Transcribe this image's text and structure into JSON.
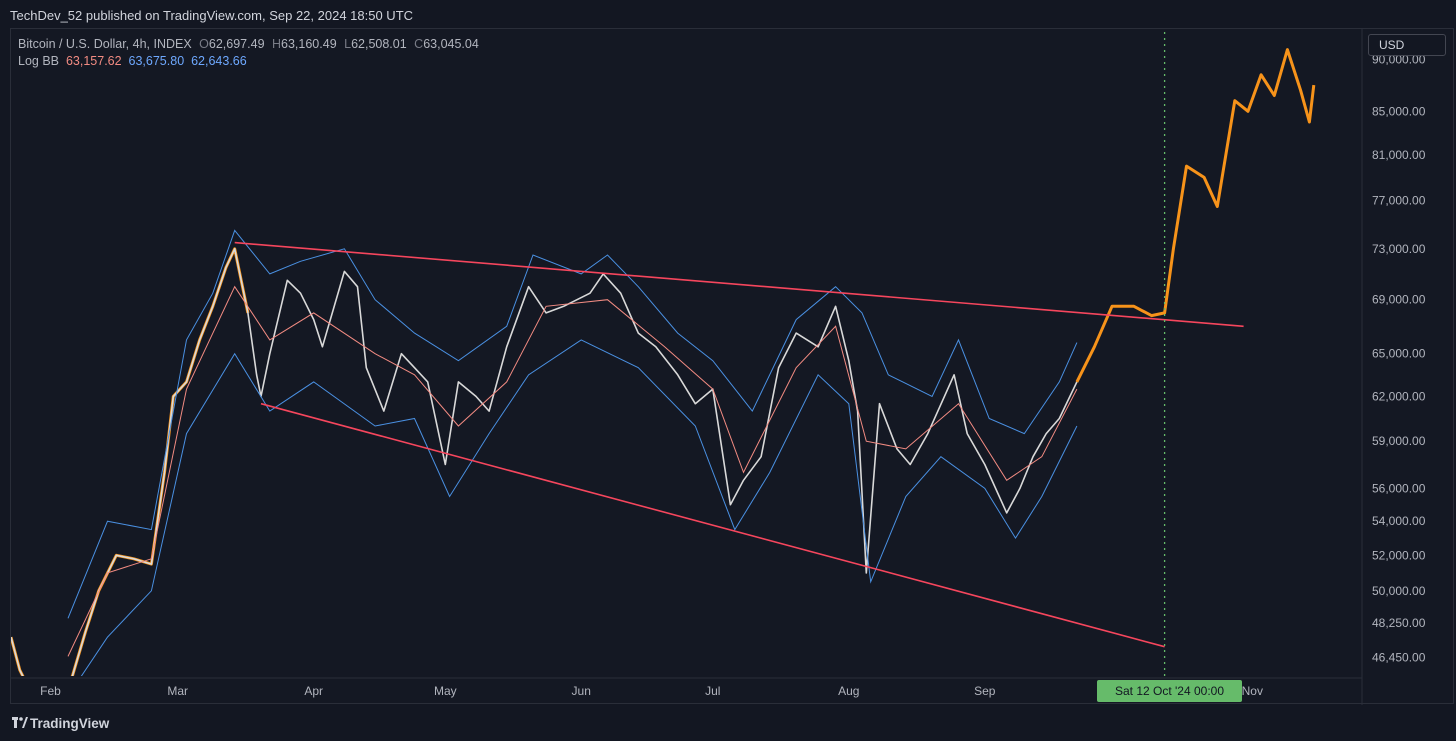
{
  "header": {
    "publish_line": "TechDev_52 published on TradingView.com, Sep 22, 2024 18:50 UTC"
  },
  "legend": {
    "symbol": "Bitcoin / U.S. Dollar, 4h, INDEX",
    "open_label": "O",
    "open": "62,697.49",
    "high_label": "H",
    "high": "63,160.49",
    "low_label": "L",
    "low": "62,508.01",
    "close_label": "C",
    "close": "63,045.04",
    "indicator": "Log BB",
    "bb_basis": "63,157.62",
    "bb_upper": "63,675.80",
    "bb_lower": "62,643.66"
  },
  "currency": "USD",
  "crosshair_time": "Sat 12 Oct '24   00:00",
  "footer": {
    "brand": "TradingView"
  },
  "colors": {
    "background": "#131722",
    "candles_history": "#d9d9d9",
    "candles_projection": "#f7931a",
    "bollinger_band": "#4a90e2",
    "bollinger_basis": "#f28b82",
    "trendline": "#f6465d",
    "vertical_marker": "#66bb6a"
  },
  "chart_data": {
    "type": "line",
    "title": "Bitcoin / U.S. Dollar, 4h, INDEX",
    "y_scale": "log",
    "ylim": [
      45500,
      93000
    ],
    "y_ticks": [
      46450,
      48250,
      50000,
      52000,
      54000,
      56000,
      59000,
      62000,
      65000,
      69000,
      73000,
      77000,
      81000,
      85000,
      90000
    ],
    "y_tick_labels": [
      "46,450.00",
      "48,250.00",
      "50,000.00",
      "52,000.00",
      "54,000.00",
      "56,000.00",
      "59,000.00",
      "62,000.00",
      "65,000.00",
      "69,000.00",
      "73,000.00",
      "77,000.00",
      "81,000.00",
      "85,000.00",
      "90,000.00"
    ],
    "x_tick_labels": [
      "Feb",
      "Mar",
      "Apr",
      "May",
      "Jun",
      "Jul",
      "Aug",
      "Sep",
      "Nov"
    ],
    "x_tick_dates": [
      "2024-02-01",
      "2024-03-01",
      "2024-04-01",
      "2024-05-01",
      "2024-06-01",
      "2024-07-01",
      "2024-08-01",
      "2024-09-01",
      "2024-11-01"
    ],
    "xlim": [
      "2024-01-23",
      "2024-11-26"
    ],
    "series": [
      {
        "style": "price",
        "points": [
          [
            "2024-01-23",
            47500
          ],
          [
            "2024-01-25",
            45800
          ],
          [
            "2024-01-28",
            44500
          ],
          [
            "2024-02-01",
            43800
          ],
          [
            "2024-02-06",
            45500
          ],
          [
            "2024-02-09",
            47800
          ],
          [
            "2024-02-12",
            50000
          ],
          [
            "2024-02-16",
            52000
          ],
          [
            "2024-02-20",
            51800
          ],
          [
            "2024-02-24",
            51500
          ],
          [
            "2024-02-27",
            57000
          ],
          [
            "2024-02-29",
            62000
          ],
          [
            "2024-03-03",
            63000
          ],
          [
            "2024-03-06",
            66000
          ],
          [
            "2024-03-09",
            68500
          ],
          [
            "2024-03-12",
            71500
          ],
          [
            "2024-03-14",
            73000
          ],
          [
            "2024-03-17",
            68000
          ],
          [
            "2024-03-19",
            63500
          ],
          [
            "2024-03-20",
            62000
          ],
          [
            "2024-03-22",
            65000
          ],
          [
            "2024-03-26",
            70500
          ],
          [
            "2024-03-29",
            69500
          ],
          [
            "2024-04-01",
            67500
          ],
          [
            "2024-04-03",
            65500
          ],
          [
            "2024-04-08",
            71200
          ],
          [
            "2024-04-11",
            70000
          ],
          [
            "2024-04-13",
            64000
          ],
          [
            "2024-04-17",
            61000
          ],
          [
            "2024-04-21",
            65000
          ],
          [
            "2024-04-24",
            64000
          ],
          [
            "2024-04-27",
            63000
          ],
          [
            "2024-05-01",
            57500
          ],
          [
            "2024-05-04",
            63000
          ],
          [
            "2024-05-08",
            62000
          ],
          [
            "2024-05-11",
            61000
          ],
          [
            "2024-05-15",
            65500
          ],
          [
            "2024-05-20",
            70000
          ],
          [
            "2024-05-24",
            68000
          ],
          [
            "2024-05-28",
            68500
          ],
          [
            "2024-06-03",
            69500
          ],
          [
            "2024-06-06",
            71000
          ],
          [
            "2024-06-10",
            69500
          ],
          [
            "2024-06-14",
            66500
          ],
          [
            "2024-06-18",
            65500
          ],
          [
            "2024-06-23",
            63500
          ],
          [
            "2024-06-27",
            61500
          ],
          [
            "2024-07-01",
            62500
          ],
          [
            "2024-07-05",
            55000
          ],
          [
            "2024-07-08",
            56500
          ],
          [
            "2024-07-12",
            58000
          ],
          [
            "2024-07-16",
            64000
          ],
          [
            "2024-07-20",
            66500
          ],
          [
            "2024-07-25",
            65500
          ],
          [
            "2024-07-29",
            68500
          ],
          [
            "2024-08-01",
            64500
          ],
          [
            "2024-08-03",
            61000
          ],
          [
            "2024-08-05",
            51000
          ],
          [
            "2024-08-08",
            61500
          ],
          [
            "2024-08-12",
            58500
          ],
          [
            "2024-08-15",
            57500
          ],
          [
            "2024-08-19",
            59500
          ],
          [
            "2024-08-25",
            63500
          ],
          [
            "2024-08-28",
            59500
          ],
          [
            "2024-09-01",
            57500
          ],
          [
            "2024-09-06",
            54500
          ],
          [
            "2024-09-09",
            56000
          ],
          [
            "2024-09-12",
            58000
          ],
          [
            "2024-09-15",
            59500
          ],
          [
            "2024-09-18",
            60500
          ],
          [
            "2024-09-22",
            63000
          ],
          [
            "2024-09-26",
            65500
          ],
          [
            "2024-09-30",
            68500
          ],
          [
            "2024-10-05",
            68500
          ],
          [
            "2024-10-09",
            67800
          ],
          [
            "2024-10-12",
            68000
          ],
          [
            "2024-10-14",
            73000
          ],
          [
            "2024-10-17",
            80000
          ],
          [
            "2024-10-21",
            79000
          ],
          [
            "2024-10-24",
            76500
          ],
          [
            "2024-10-28",
            86000
          ],
          [
            "2024-10-31",
            85000
          ],
          [
            "2024-11-03",
            88500
          ],
          [
            "2024-11-06",
            86500
          ],
          [
            "2024-11-09",
            91000
          ],
          [
            "2024-11-12",
            87000
          ],
          [
            "2024-11-14",
            84000
          ],
          [
            "2024-11-15",
            87500
          ]
        ]
      },
      {
        "style": "bb_upper",
        "points": [
          [
            "2024-02-05",
            48500
          ],
          [
            "2024-02-14",
            54000
          ],
          [
            "2024-02-24",
            53500
          ],
          [
            "2024-03-03",
            66000
          ],
          [
            "2024-03-09",
            69500
          ],
          [
            "2024-03-14",
            74500
          ],
          [
            "2024-03-22",
            71000
          ],
          [
            "2024-03-29",
            72000
          ],
          [
            "2024-04-08",
            73000
          ],
          [
            "2024-04-15",
            69000
          ],
          [
            "2024-04-24",
            66500
          ],
          [
            "2024-05-04",
            64500
          ],
          [
            "2024-05-15",
            67000
          ],
          [
            "2024-05-21",
            72500
          ],
          [
            "2024-06-01",
            71000
          ],
          [
            "2024-06-07",
            72500
          ],
          [
            "2024-06-14",
            70000
          ],
          [
            "2024-06-23",
            66500
          ],
          [
            "2024-07-01",
            64500
          ],
          [
            "2024-07-10",
            61000
          ],
          [
            "2024-07-20",
            67500
          ],
          [
            "2024-07-29",
            70000
          ],
          [
            "2024-08-04",
            68000
          ],
          [
            "2024-08-10",
            63500
          ],
          [
            "2024-08-20",
            62000
          ],
          [
            "2024-08-26",
            66000
          ],
          [
            "2024-09-02",
            60500
          ],
          [
            "2024-09-10",
            59500
          ],
          [
            "2024-09-18",
            63000
          ],
          [
            "2024-09-22",
            65800
          ]
        ]
      },
      {
        "style": "bb_lower",
        "points": [
          [
            "2024-02-05",
            44500
          ],
          [
            "2024-02-14",
            47500
          ],
          [
            "2024-02-24",
            50000
          ],
          [
            "2024-03-03",
            59500
          ],
          [
            "2024-03-14",
            65000
          ],
          [
            "2024-03-22",
            61000
          ],
          [
            "2024-04-01",
            63000
          ],
          [
            "2024-04-15",
            60000
          ],
          [
            "2024-04-24",
            60500
          ],
          [
            "2024-05-02",
            55500
          ],
          [
            "2024-05-11",
            59500
          ],
          [
            "2024-05-20",
            63500
          ],
          [
            "2024-06-01",
            66000
          ],
          [
            "2024-06-14",
            64000
          ],
          [
            "2024-06-27",
            60000
          ],
          [
            "2024-07-06",
            53500
          ],
          [
            "2024-07-14",
            57000
          ],
          [
            "2024-07-25",
            63500
          ],
          [
            "2024-08-01",
            61500
          ],
          [
            "2024-08-06",
            50500
          ],
          [
            "2024-08-14",
            55500
          ],
          [
            "2024-08-22",
            58000
          ],
          [
            "2024-09-01",
            56000
          ],
          [
            "2024-09-08",
            53000
          ],
          [
            "2024-09-14",
            55500
          ],
          [
            "2024-09-22",
            60000
          ]
        ]
      },
      {
        "style": "bb_basis",
        "points": [
          [
            "2024-02-05",
            46500
          ],
          [
            "2024-02-14",
            51000
          ],
          [
            "2024-02-24",
            51800
          ],
          [
            "2024-03-03",
            62500
          ],
          [
            "2024-03-14",
            70000
          ],
          [
            "2024-03-22",
            66000
          ],
          [
            "2024-04-01",
            68000
          ],
          [
            "2024-04-15",
            65000
          ],
          [
            "2024-04-24",
            63500
          ],
          [
            "2024-05-04",
            60000
          ],
          [
            "2024-05-15",
            63000
          ],
          [
            "2024-05-24",
            68500
          ],
          [
            "2024-06-07",
            69000
          ],
          [
            "2024-06-20",
            65500
          ],
          [
            "2024-07-01",
            62500
          ],
          [
            "2024-07-08",
            57000
          ],
          [
            "2024-07-20",
            64000
          ],
          [
            "2024-07-29",
            67000
          ],
          [
            "2024-08-05",
            59000
          ],
          [
            "2024-08-14",
            58500
          ],
          [
            "2024-08-26",
            61500
          ],
          [
            "2024-09-06",
            56500
          ],
          [
            "2024-09-14",
            58000
          ],
          [
            "2024-09-22",
            62500
          ]
        ]
      },
      {
        "style": "upper_trendline",
        "points": [
          [
            "2024-03-14",
            73500
          ],
          [
            "2024-10-30",
            67000
          ]
        ]
      },
      {
        "style": "lower_trendline",
        "points": [
          [
            "2024-03-20",
            61500
          ],
          [
            "2024-10-12",
            47000
          ]
        ]
      },
      {
        "style": "vertical_marker",
        "points": [
          [
            "2024-10-12",
            45500
          ],
          [
            "2024-10-12",
            93000
          ]
        ]
      }
    ],
    "projection_start": "2024-09-22",
    "grid": false,
    "legend_position": "top-left"
  }
}
